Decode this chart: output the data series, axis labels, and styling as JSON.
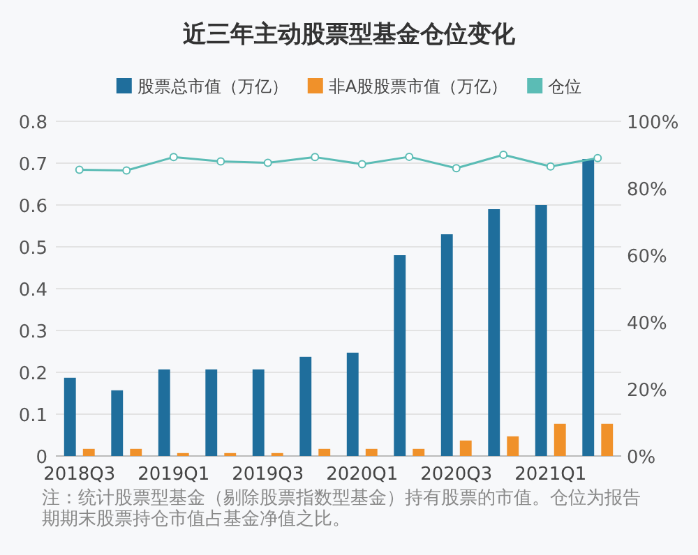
{
  "chart_data": {
    "type": "bar",
    "title": "近三年主动股票型基金仓位变化",
    "categories": [
      "2018Q3",
      null,
      "2019Q1",
      null,
      "2019Q3",
      null,
      "2020Q1",
      null,
      "2020Q3",
      null,
      "2021Q1",
      null
    ],
    "series": [
      {
        "name": "股票总市值（万亿）",
        "color": "#1f6e9c",
        "values": [
          0.187,
          0.157,
          0.207,
          0.207,
          0.207,
          0.237,
          0.247,
          0.48,
          0.53,
          0.59,
          0.6,
          0.71
        ]
      },
      {
        "name": "非A股股票市值（万亿）",
        "color": "#f0912a",
        "values": [
          0.017,
          0.017,
          0.007,
          0.007,
          0.007,
          0.017,
          0.017,
          0.017,
          0.037,
          0.047,
          0.077,
          0.077
        ]
      },
      {
        "name": "仓位",
        "color": "#5bbcb5",
        "type": "line",
        "axis": "y2",
        "marker": "circle",
        "values": [
          85.5,
          85.3,
          89.3,
          88,
          87.6,
          89.3,
          87.2,
          89.4,
          86,
          90,
          86.5,
          89
        ]
      }
    ],
    "ylim": [
      0,
      0.8
    ],
    "yticks": [
      0,
      0.1,
      0.2,
      0.3,
      0.4,
      0.5,
      0.6,
      0.7,
      0.8
    ],
    "y2lim": [
      0,
      100
    ],
    "y2ticks": [
      {
        "value": 0,
        "label": "0%"
      },
      {
        "value": 20,
        "label": "20%"
      },
      {
        "value": 40,
        "label": "40%"
      },
      {
        "value": 60,
        "label": "60%"
      },
      {
        "value": 80,
        "label": "80%"
      },
      {
        "value": 100,
        "label": "100%"
      }
    ],
    "grid": "y",
    "legend": "top",
    "annotations": [
      "注：统计股票型基金（剔除股票指数型基金）持有股票的市值。仓位为报告期期末股票持仓市值占基金净值之比。"
    ]
  }
}
